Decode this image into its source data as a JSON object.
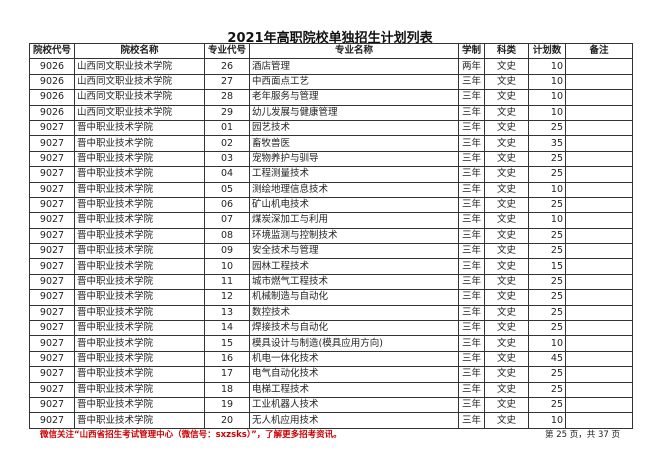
{
  "title": "2021年高职院校单独招生计划列表",
  "headers": [
    "院校代号",
    "院校名称",
    "专业代号",
    "专业名称",
    "学制",
    "科类",
    "计划数",
    "备注"
  ],
  "rows": [
    [
      "9026",
      "山西同文职业技术学院",
      "26",
      "酒店管理",
      "两年",
      "文史",
      "10",
      ""
    ],
    [
      "9026",
      "山西同文职业技术学院",
      "27",
      "中西面点工艺",
      "三年",
      "文史",
      "10",
      ""
    ],
    [
      "9026",
      "山西同文职业技术学院",
      "28",
      "老年服务与管理",
      "三年",
      "文史",
      "10",
      ""
    ],
    [
      "9026",
      "山西同文职业技术学院",
      "29",
      "幼儿发展与健康管理",
      "三年",
      "文史",
      "10",
      ""
    ],
    [
      "9027",
      "晋中职业技术学院",
      "01",
      "园艺技术",
      "三年",
      "文史",
      "25",
      ""
    ],
    [
      "9027",
      "晋中职业技术学院",
      "02",
      "畜牧兽医",
      "三年",
      "文史",
      "35",
      ""
    ],
    [
      "9027",
      "晋中职业技术学院",
      "03",
      "宠物养护与驯导",
      "三年",
      "文史",
      "25",
      ""
    ],
    [
      "9027",
      "晋中职业技术学院",
      "04",
      "工程测量技术",
      "三年",
      "文史",
      "25",
      ""
    ],
    [
      "9027",
      "晋中职业技术学院",
      "05",
      "测绘地理信息技术",
      "三年",
      "文史",
      "10",
      ""
    ],
    [
      "9027",
      "晋中职业技术学院",
      "06",
      "矿山机电技术",
      "三年",
      "文史",
      "25",
      ""
    ],
    [
      "9027",
      "晋中职业技术学院",
      "07",
      "煤炭深加工与利用",
      "三年",
      "文史",
      "10",
      ""
    ],
    [
      "9027",
      "晋中职业技术学院",
      "08",
      "环境监测与控制技术",
      "三年",
      "文史",
      "25",
      ""
    ],
    [
      "9027",
      "晋中职业技术学院",
      "09",
      "安全技术与管理",
      "三年",
      "文史",
      "25",
      ""
    ],
    [
      "9027",
      "晋中职业技术学院",
      "10",
      "园林工程技术",
      "三年",
      "文史",
      "15",
      ""
    ],
    [
      "9027",
      "晋中职业技术学院",
      "11",
      "城市燃气工程技术",
      "三年",
      "文史",
      "25",
      ""
    ],
    [
      "9027",
      "晋中职业技术学院",
      "12",
      "机械制造与自动化",
      "三年",
      "文史",
      "25",
      ""
    ],
    [
      "9027",
      "晋中职业技术学院",
      "13",
      "数控技术",
      "三年",
      "文史",
      "25",
      ""
    ],
    [
      "9027",
      "晋中职业技术学院",
      "14",
      "焊接技术与自动化",
      "三年",
      "文史",
      "25",
      ""
    ],
    [
      "9027",
      "晋中职业技术学院",
      "15",
      "模具设计与制造(模具应用方向)",
      "三年",
      "文史",
      "10",
      ""
    ],
    [
      "9027",
      "晋中职业技术学院",
      "16",
      "机电一体化技术",
      "三年",
      "文史",
      "45",
      ""
    ],
    [
      "9027",
      "晋中职业技术学院",
      "17",
      "电气自动化技术",
      "三年",
      "文史",
      "25",
      ""
    ],
    [
      "9027",
      "晋中职业技术学院",
      "18",
      "电梯工程技术",
      "三年",
      "文史",
      "25",
      ""
    ],
    [
      "9027",
      "晋中职业技术学院",
      "19",
      "工业机器人技术",
      "三年",
      "文史",
      "25",
      ""
    ],
    [
      "9027",
      "晋中职业技术学院",
      "20",
      "无人机应用技术",
      "三年",
      "文史",
      "10",
      ""
    ]
  ],
  "footer": {
    "note": "微信关注“山西省招生考试管理中心（微信号：sxzsks）”，了解更多招考资讯。",
    "page": "第 25 页，共 37 页"
  },
  "colors": {
    "note": "#cc0000",
    "border": "#333333"
  }
}
